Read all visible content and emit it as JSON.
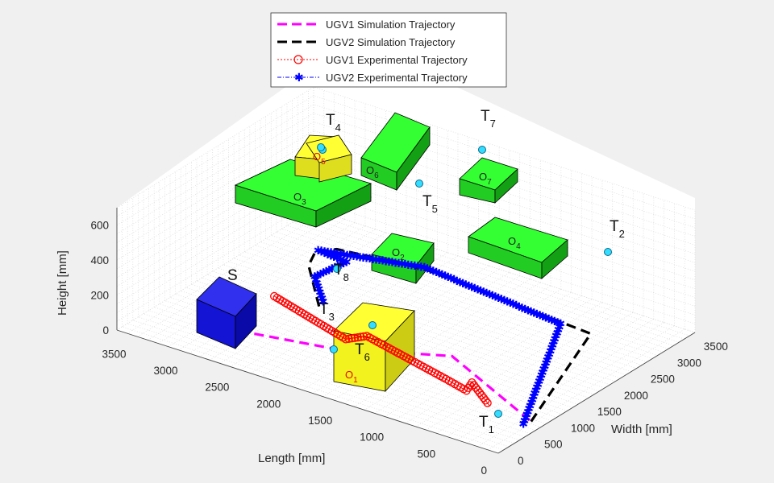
{
  "chart_data": {
    "type": "line",
    "view": "3d",
    "grid": true,
    "legend_position": "top",
    "xlabel": "Length [mm]",
    "ylabel": "Width [mm]",
    "zlabel": "Height [mm]",
    "xlim": [
      0,
      3700
    ],
    "ylim": [
      0,
      3700
    ],
    "zlim": [
      0,
      700
    ],
    "x_ticks": [
      "0",
      "500",
      "1000",
      "1500",
      "2000",
      "2500",
      "3000",
      "3500"
    ],
    "y_ticks": [
      "0",
      "500",
      "1000",
      "1500",
      "2000",
      "2500",
      "3000",
      "3500"
    ],
    "z_ticks": [
      "0",
      "200",
      "400",
      "600"
    ],
    "series": [
      {
        "name": "UGV1 Simulation Trajectory",
        "color": "#ff00ff",
        "style": "dashed",
        "x": [
          3000,
          2780,
          1850,
          1640,
          1300,
          120
        ],
        "y": [
          650,
          820,
          1120,
          1400,
          1650,
          850
        ],
        "z": [
          0,
          0,
          0,
          0,
          0,
          0
        ]
      },
      {
        "name": "UGV2 Simulation Trajectory",
        "color": "#000000",
        "style": "dashed",
        "x": [
          120,
          650,
          2380,
          3140,
          3250,
          3150,
          2650
        ],
        "y": [
          850,
          3000,
          3220,
          3050,
          2860,
          2540,
          1770
        ],
        "z": [
          0,
          0,
          0,
          0,
          0,
          0,
          0
        ]
      },
      {
        "name": "UGV1 Experimental Trajectory",
        "color": "#ff0000",
        "style": "circle-markers",
        "x": [
          3050,
          2150,
          2050,
          1100,
          850,
          900,
          550
        ],
        "y": [
          1700,
          1300,
          1500,
          1150,
          1050,
          1250,
          900
        ],
        "z": [
          0,
          0,
          0,
          0,
          0,
          0,
          0
        ]
      },
      {
        "name": "UGV2 Experimental Trajectory",
        "color": "#0000ff",
        "style": "star-markers",
        "x": [
          150,
          950,
          2400,
          3250,
          2950,
          3000,
          2650
        ],
        "y": [
          750,
          3000,
          3250,
          2900,
          2850,
          2350,
          1850
        ],
        "z": [
          0,
          0,
          0,
          0,
          0,
          0,
          0
        ]
      }
    ],
    "waypoints": [
      "S",
      "T1",
      "T2",
      "T3",
      "T4",
      "T5",
      "T6",
      "T7",
      "T8"
    ],
    "obstacles": [
      "O1",
      "O2",
      "O3",
      "O4",
      "O5",
      "O6",
      "O7"
    ]
  },
  "legend": [
    "UGV1 Simulation Trajectory",
    "UGV2 Simulation Trajectory",
    "UGV1 Experimental Trajectory",
    "UGV2 Experimental Trajectory"
  ],
  "annotations": [
    {
      "id": "S",
      "base": "S",
      "sub": ""
    },
    {
      "id": "T1",
      "base": "T",
      "sub": "1"
    },
    {
      "id": "T2",
      "base": "T",
      "sub": "2"
    },
    {
      "id": "T3",
      "base": "T",
      "sub": "3"
    },
    {
      "id": "T4",
      "base": "T",
      "sub": "4"
    },
    {
      "id": "T5",
      "base": "T",
      "sub": "5"
    },
    {
      "id": "T6",
      "base": "T",
      "sub": "6"
    },
    {
      "id": "T7",
      "base": "T",
      "sub": "7"
    },
    {
      "id": "T8",
      "base": "T",
      "sub": "8"
    }
  ],
  "obstacle_labels": [
    {
      "id": "O1",
      "base": "O",
      "sub": "1"
    },
    {
      "id": "O2",
      "base": "O",
      "sub": "2"
    },
    {
      "id": "O3",
      "base": "O",
      "sub": "3"
    },
    {
      "id": "O4",
      "base": "O",
      "sub": "4"
    },
    {
      "id": "O5",
      "base": "O",
      "sub": "5"
    },
    {
      "id": "O6",
      "base": "O",
      "sub": "6"
    },
    {
      "id": "O7",
      "base": "O",
      "sub": "7"
    }
  ],
  "colors": {
    "obstacle_top": "#33ff33",
    "obstacle_side": "#22cc22",
    "obstacle_dark": "#14a014",
    "start_block": "#1414d4",
    "target_block": "#ffff33",
    "waypoint": "#33ddff"
  }
}
